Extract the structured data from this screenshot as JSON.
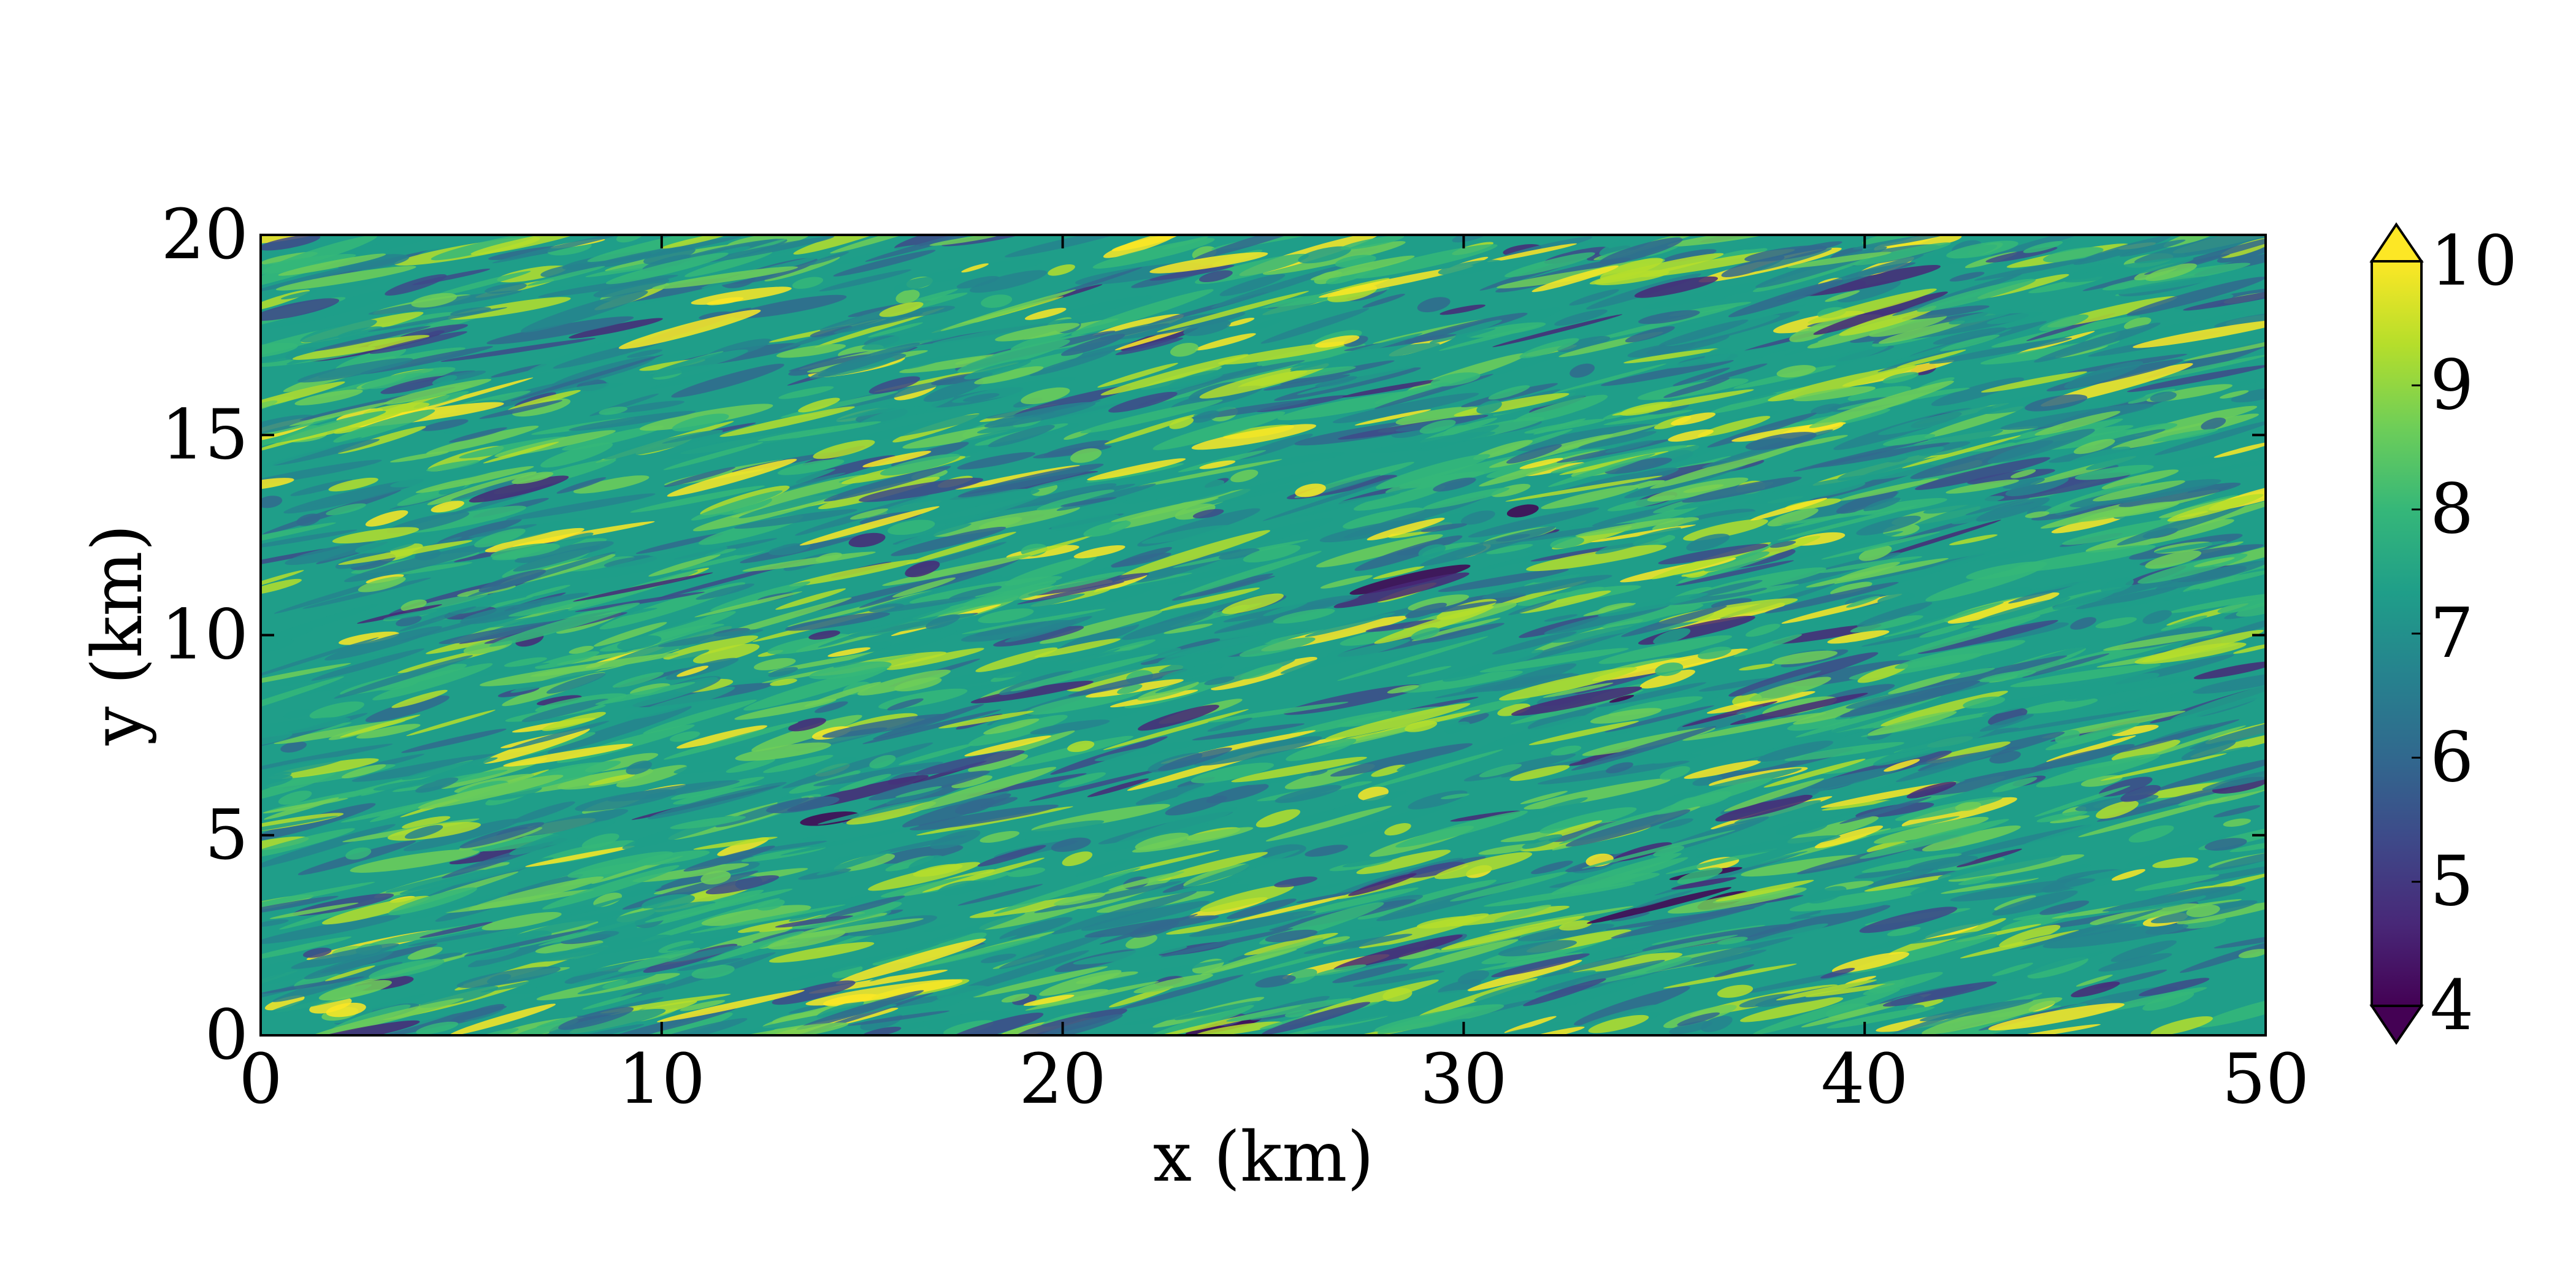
{
  "chart_data": {
    "type": "heatmap",
    "title": "",
    "xlabel": "x (km)",
    "ylabel": "y (km)",
    "xlim": [
      0,
      50
    ],
    "ylim": [
      0,
      20
    ],
    "x_ticks": [
      0,
      10,
      20,
      30,
      40,
      50
    ],
    "y_ticks": [
      0,
      5,
      10,
      15,
      20
    ],
    "x_tick_labels": [
      "0",
      "10",
      "20",
      "30",
      "40",
      "50"
    ],
    "y_tick_labels": [
      "0",
      "5",
      "10",
      "15",
      "20"
    ],
    "grid": false,
    "colormap": "viridis",
    "colorbar": {
      "vmin": 4,
      "vmax": 10,
      "ticks": [
        4,
        5,
        6,
        7,
        8,
        9,
        10
      ],
      "tick_labels": [
        "4",
        "5",
        "6",
        "7",
        "8",
        "9",
        "10"
      ],
      "extend": "both",
      "placement": "right"
    },
    "field_mean": 7.6,
    "field_range_typical": [
      5.5,
      9.5
    ],
    "streak_direction": "diagonal streaks rising from lower-left to upper-right"
  },
  "colors": {
    "viridis": [
      "#440154",
      "#482878",
      "#3e4989",
      "#31688e",
      "#26828e",
      "#1f9e89",
      "#35b779",
      "#6ece58",
      "#b5de2b",
      "#fde725"
    ]
  }
}
